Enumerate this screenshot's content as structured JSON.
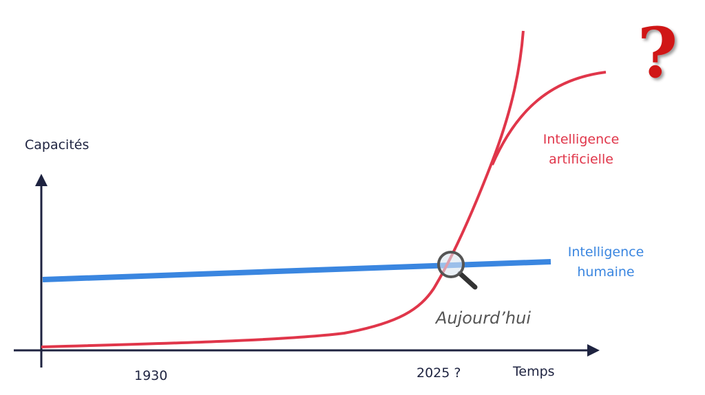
{
  "axes": {
    "y_label": "Capacités",
    "x_label": "Temps",
    "x_markers": [
      "1930",
      "2025 ?"
    ]
  },
  "curves": [
    {
      "label_lines": [
        "Intelligence",
        "artificielle"
      ]
    },
    {
      "label_lines": [
        "Intelligence",
        "humaine"
      ]
    }
  ],
  "annotation": "Aujourd’hui",
  "icon": "?"
}
